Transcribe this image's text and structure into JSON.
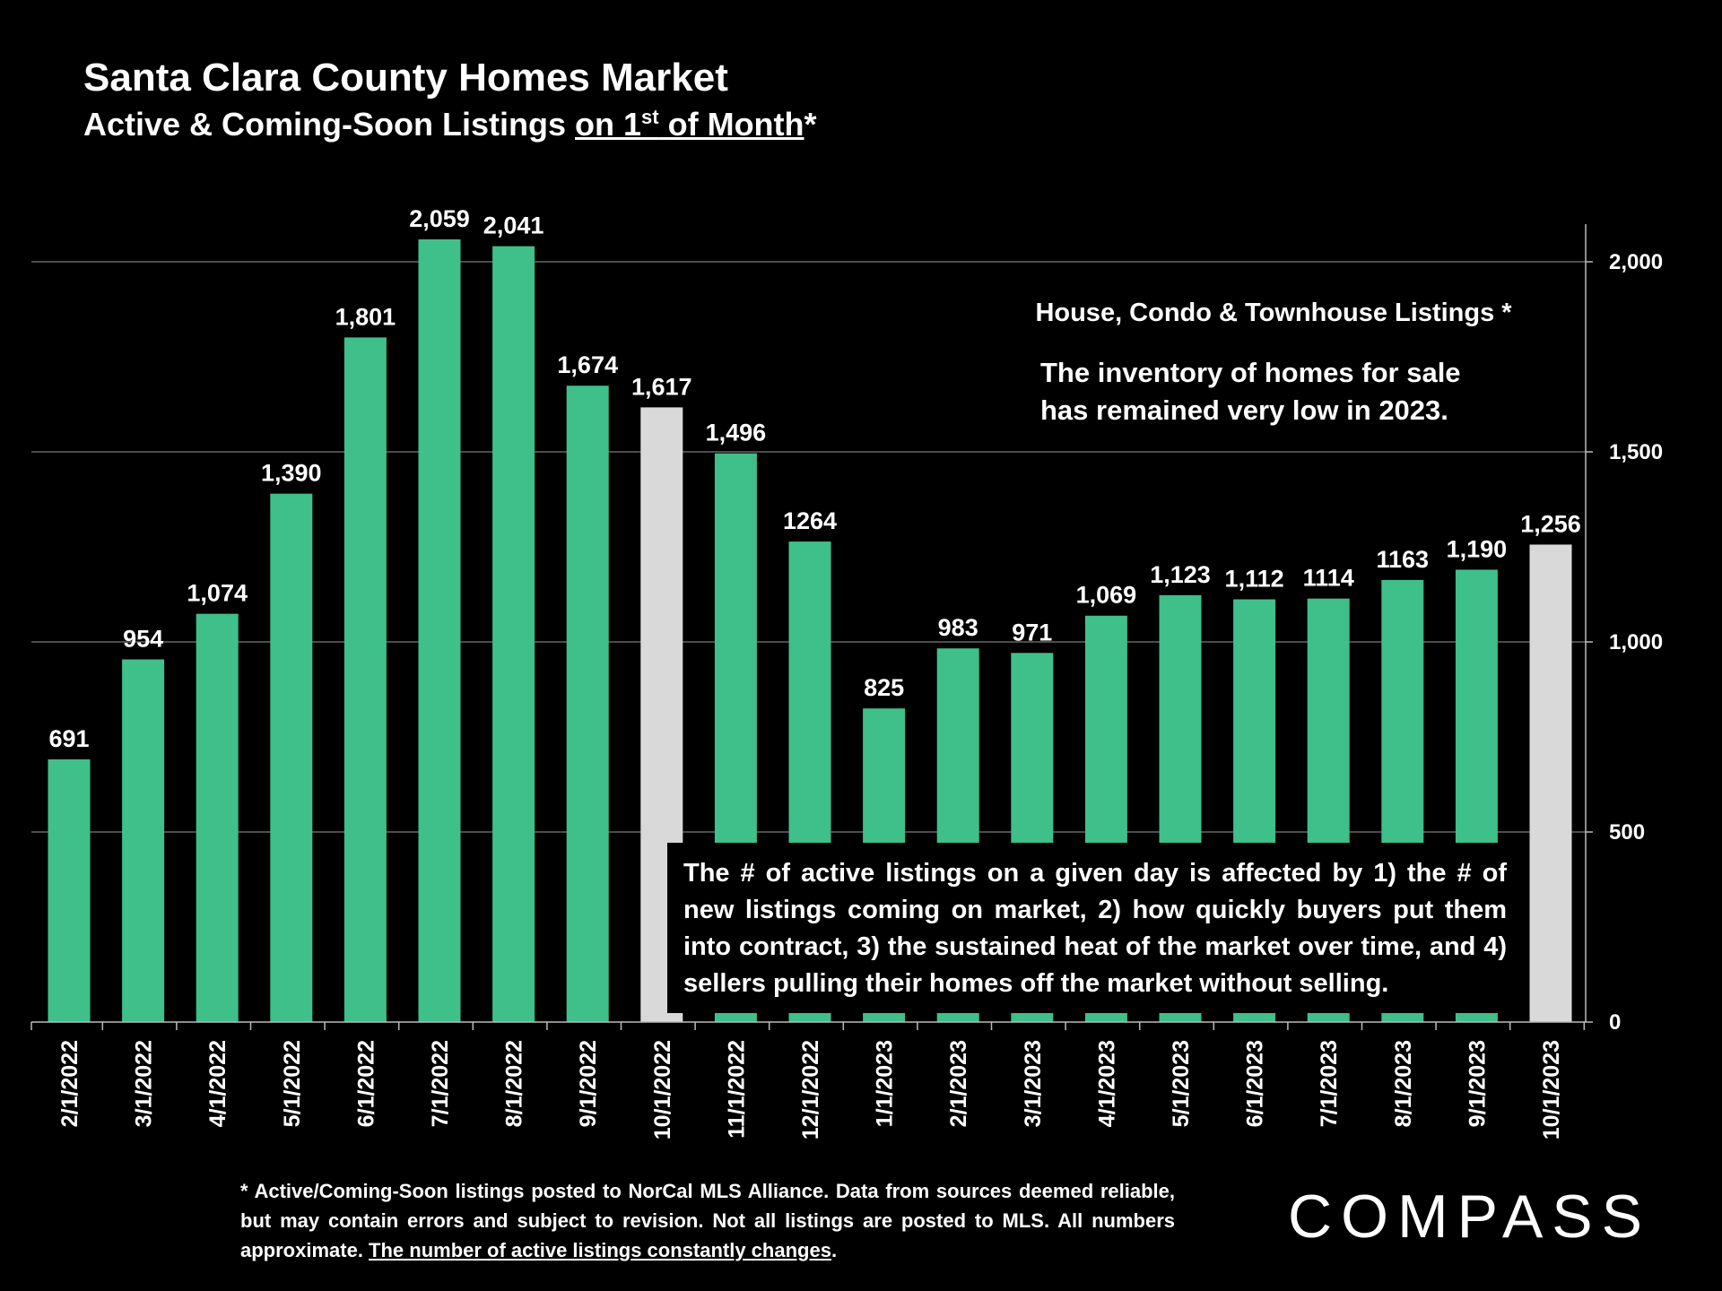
{
  "header": {
    "title": "Santa Clara County Homes Market",
    "subtitle_pre": "Active & Coming-Soon Listings ",
    "subtitle_ul_pre": "on 1",
    "subtitle_sup": "st",
    "subtitle_ul_post": " of Month",
    "subtitle_post": "*"
  },
  "notes": {
    "listing_types": "House, Condo & Townhouse Listings *",
    "inventory": "The inventory of homes for sale has remained very low in 2023.",
    "explanation": "The # of active listings on a given day is affected by 1) the # of new listings coming on market, 2) how quickly buyers put them into contract, 3) the sustained heat of the market over time, and 4) sellers pulling their homes off the market without selling."
  },
  "footnote": {
    "text": "* Active/Coming-Soon listings posted to NorCal MLS Alliance.  Data from sources deemed reliable, but may contain errors and subject to revision.  Not all listings are posted to MLS. All numbers approximate. ",
    "underlined": "The number of active listings constantly changes",
    "end": "."
  },
  "brand": {
    "logo_text": "COMPASS"
  },
  "colors": {
    "bar": "#3fbf8a",
    "highlight_bar": "#d9d9d9",
    "background": "#000000",
    "text": "#ffffff",
    "grid": "#7a7a7a"
  },
  "chart_data": {
    "type": "bar",
    "title": "Santa Clara County Homes Market",
    "xlabel": "",
    "ylabel": "",
    "ylim": [
      0,
      2000
    ],
    "yticks": [
      0,
      500,
      1000,
      1500,
      2000
    ],
    "ytick_labels": [
      "0",
      "500",
      "1,000",
      "1,500",
      "2,000"
    ],
    "y_axis_position": "right",
    "grid": true,
    "categories": [
      "2/1/2022",
      "3/1/2022",
      "4/1/2022",
      "5/1/2022",
      "6/1/2022",
      "7/1/2022",
      "8/1/2022",
      "9/1/2022",
      "10/1/2022",
      "11/1/2022",
      "12/1/2022",
      "1/1/2023",
      "2/1/2023",
      "3/1/2023",
      "4/1/2023",
      "5/1/2023",
      "6/1/2023",
      "7/1/2023",
      "8/1/2023",
      "9/1/2023",
      "10/1/2023"
    ],
    "values": [
      691,
      954,
      1074,
      1390,
      1801,
      2059,
      2041,
      1674,
      1617,
      1496,
      1264,
      825,
      983,
      971,
      1069,
      1123,
      1112,
      1114,
      1163,
      1190,
      1256
    ],
    "value_labels": [
      "691",
      "954",
      "1,074",
      "1,390",
      "1,801",
      "2,059",
      "2,041",
      "1,674",
      "1,617",
      "1,496",
      "1264",
      "825",
      "983",
      "971",
      "1,069",
      "1,123",
      "1,112",
      "1114",
      "1163",
      "1,190",
      "1,256"
    ],
    "highlighted": [
      "10/1/2022",
      "10/1/2023"
    ]
  }
}
